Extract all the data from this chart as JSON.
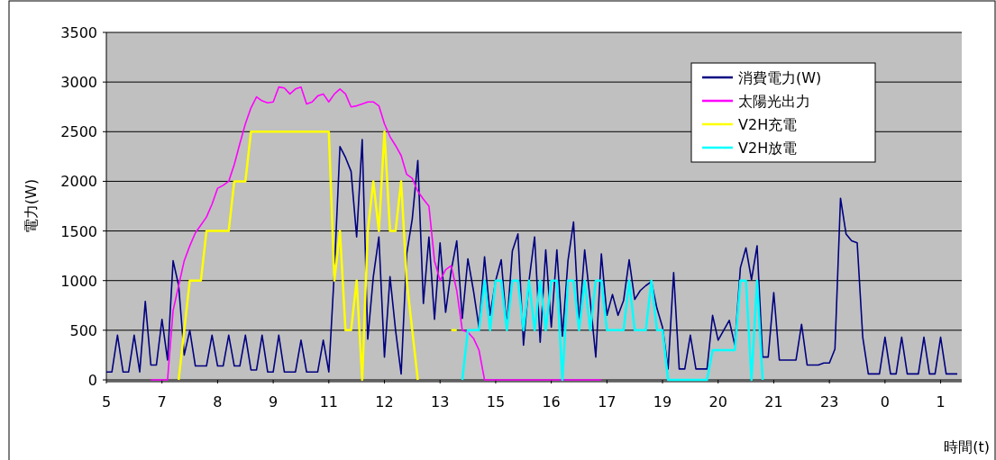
{
  "chart_data": {
    "type": "line",
    "xlabel": "時間(t)",
    "ylabel": "電力(W)",
    "ylim": [
      0,
      3500
    ],
    "categories": [
      "5",
      null,
      null,
      null,
      null,
      null,
      null,
      null,
      null,
      null,
      "7",
      null,
      null,
      null,
      null,
      null,
      null,
      null,
      null,
      null,
      "8",
      null,
      null,
      null,
      null,
      null,
      null,
      null,
      null,
      null,
      "9",
      null,
      null,
      null,
      null,
      null,
      null,
      null,
      null,
      null,
      "11",
      null,
      null,
      null,
      null,
      null,
      null,
      null,
      null,
      null,
      "12",
      null,
      null,
      null,
      null,
      null,
      null,
      null,
      null,
      null,
      "13",
      null,
      null,
      null,
      null,
      null,
      null,
      null,
      null,
      null,
      "15",
      null,
      null,
      null,
      null,
      null,
      null,
      null,
      null,
      null,
      "16",
      null,
      null,
      null,
      null,
      null,
      null,
      null,
      null,
      null,
      "17",
      null,
      null,
      null,
      null,
      null,
      null,
      null,
      null,
      null,
      "19",
      null,
      null,
      null,
      null,
      null,
      null,
      null,
      null,
      null,
      "20",
      null,
      null,
      null,
      null,
      null,
      null,
      null,
      null,
      null,
      "21",
      null,
      null,
      null,
      null,
      null,
      null,
      null,
      null,
      null,
      "23",
      null,
      null,
      null,
      null,
      null,
      null,
      null,
      null,
      null,
      "0",
      null,
      null,
      null,
      null,
      null,
      null,
      null,
      null,
      null,
      "1",
      null,
      null,
      null
    ],
    "yticks": [
      0,
      500,
      1000,
      1500,
      2000,
      2500,
      3000,
      3500
    ],
    "grid": "y",
    "legend": "top right",
    "series": [
      {
        "name": "消費電力(W)",
        "color": "#000080",
        "values": [
          80,
          80,
          450,
          80,
          80,
          450,
          80,
          790,
          150,
          150,
          610,
          200,
          1200,
          950,
          250,
          500,
          140,
          140,
          140,
          450,
          140,
          140,
          450,
          140,
          140,
          450,
          100,
          100,
          450,
          80,
          80,
          450,
          80,
          80,
          80,
          400,
          80,
          80,
          80,
          400,
          80,
          1100,
          2350,
          2240,
          2100,
          1440,
          2420,
          410,
          1040,
          1440,
          230,
          1040,
          500,
          60,
          1270,
          1620,
          2210,
          770,
          1440,
          610,
          1380,
          680,
          1100,
          1400,
          620,
          1220,
          900,
          530,
          1240,
          650,
          1000,
          1210,
          530,
          1300,
          1470,
          350,
          1000,
          1440,
          380,
          1310,
          530,
          1310,
          440,
          1200,
          1590,
          560,
          1310,
          800,
          230,
          1270,
          650,
          860,
          650,
          800,
          1210,
          810,
          900,
          950,
          990,
          720,
          530,
          110,
          1080,
          110,
          110,
          450,
          110,
          110,
          110,
          650,
          400,
          500,
          600,
          350,
          1130,
          1330,
          1010,
          1350,
          230,
          230,
          880,
          200,
          200,
          200,
          200,
          560,
          150,
          150,
          150,
          170,
          170,
          310,
          1830,
          1470,
          1400,
          1380,
          430,
          60,
          60,
          60,
          430,
          60,
          60,
          430,
          60,
          60,
          60,
          430,
          60,
          60,
          430,
          60,
          60,
          60
        ]
      },
      {
        "name": "太陽光出力",
        "color": "#ff00ff",
        "values": [
          null,
          null,
          null,
          null,
          null,
          null,
          null,
          null,
          0,
          0,
          0,
          0,
          700,
          950,
          1200,
          1350,
          1480,
          1560,
          1640,
          1770,
          1930,
          1960,
          2000,
          2170,
          2380,
          2580,
          2740,
          2850,
          2810,
          2790,
          2800,
          2950,
          2940,
          2880,
          2930,
          2950,
          2780,
          2800,
          2860,
          2880,
          2800,
          2880,
          2930,
          2880,
          2750,
          2760,
          2780,
          2800,
          2800,
          2760,
          2580,
          2450,
          2360,
          2260,
          2070,
          2030,
          1900,
          1820,
          1750,
          1200,
          1000,
          1110,
          1150,
          900,
          500,
          480,
          420,
          300,
          0,
          0,
          0,
          0,
          0,
          0,
          0,
          0,
          0,
          0,
          0,
          0,
          0,
          0,
          0,
          0,
          0,
          0,
          0,
          0,
          0,
          0,
          null,
          null,
          null,
          null,
          null,
          null,
          null,
          null,
          null,
          null,
          null,
          null,
          null,
          null,
          null,
          null,
          null,
          null,
          null,
          null,
          null,
          null,
          null,
          null,
          null,
          null,
          null,
          null,
          null,
          null,
          null,
          null,
          null,
          null,
          null,
          null,
          null,
          null,
          null,
          null,
          null,
          null,
          null,
          null,
          null,
          null,
          null,
          null,
          null,
          null,
          null,
          null,
          null,
          null,
          null,
          null,
          null,
          null,
          null,
          null,
          null,
          null,
          null,
          null
        ]
      },
      {
        "name": "V2H充電",
        "color": "#ffff00",
        "values": [
          null,
          null,
          null,
          null,
          null,
          null,
          null,
          null,
          null,
          null,
          null,
          null,
          null,
          0,
          500,
          1000,
          1000,
          1000,
          1500,
          1500,
          1500,
          1500,
          1500,
          2000,
          2000,
          2000,
          2500,
          2500,
          2500,
          2500,
          2500,
          2500,
          2500,
          2500,
          2500,
          2500,
          2500,
          2500,
          2500,
          2500,
          2500,
          1000,
          1500,
          500,
          500,
          1000,
          0,
          1500,
          2000,
          1500,
          2500,
          1500,
          1500,
          2000,
          1000,
          500,
          0,
          null,
          null,
          null,
          null,
          null,
          500,
          500,
          null,
          null,
          null,
          null,
          null,
          null,
          null,
          null,
          null,
          null,
          null,
          null,
          null,
          null,
          null,
          null,
          null,
          null,
          null,
          null,
          null,
          null,
          null,
          null,
          null,
          null,
          null,
          null,
          null,
          null,
          null,
          null,
          null,
          null,
          null,
          null,
          null,
          null,
          null,
          null,
          null,
          null,
          null,
          null,
          null,
          null,
          null,
          null,
          null,
          null,
          null,
          null,
          null,
          null,
          null,
          null,
          null,
          null,
          null,
          null,
          null,
          null,
          null,
          null,
          null,
          null,
          null,
          null,
          null,
          null,
          null,
          null,
          null,
          null,
          null,
          null,
          null,
          null,
          null,
          null,
          null,
          null,
          null,
          null,
          null,
          null,
          null,
          null,
          null,
          null
        ]
      },
      {
        "name": "V2H放電",
        "color": "#00ffff",
        "values": [
          null,
          null,
          null,
          null,
          null,
          null,
          null,
          null,
          null,
          null,
          null,
          null,
          null,
          null,
          null,
          null,
          null,
          null,
          null,
          null,
          null,
          null,
          null,
          null,
          null,
          null,
          null,
          null,
          null,
          null,
          null,
          null,
          null,
          null,
          null,
          null,
          null,
          null,
          null,
          null,
          null,
          null,
          null,
          null,
          null,
          null,
          null,
          null,
          null,
          null,
          null,
          null,
          null,
          null,
          null,
          null,
          null,
          null,
          null,
          null,
          null,
          null,
          null,
          null,
          0,
          500,
          500,
          500,
          1000,
          500,
          1000,
          1000,
          500,
          1000,
          1000,
          500,
          1000,
          500,
          1000,
          500,
          1000,
          1000,
          0,
          1000,
          1000,
          500,
          1000,
          500,
          1000,
          1000,
          500,
          500,
          500,
          500,
          1000,
          500,
          500,
          500,
          1000,
          500,
          500,
          0,
          0,
          0,
          0,
          0,
          0,
          0,
          0,
          300,
          300,
          300,
          300,
          300,
          1000,
          1000,
          0,
          1000,
          0,
          null,
          null,
          null,
          null,
          null,
          null,
          null,
          null,
          null,
          null,
          null,
          null,
          null,
          null,
          null,
          null,
          null,
          null,
          null,
          null,
          null,
          null,
          null,
          null,
          null,
          null,
          null,
          null,
          null,
          null,
          null,
          null,
          null,
          null,
          null
        ]
      }
    ]
  }
}
